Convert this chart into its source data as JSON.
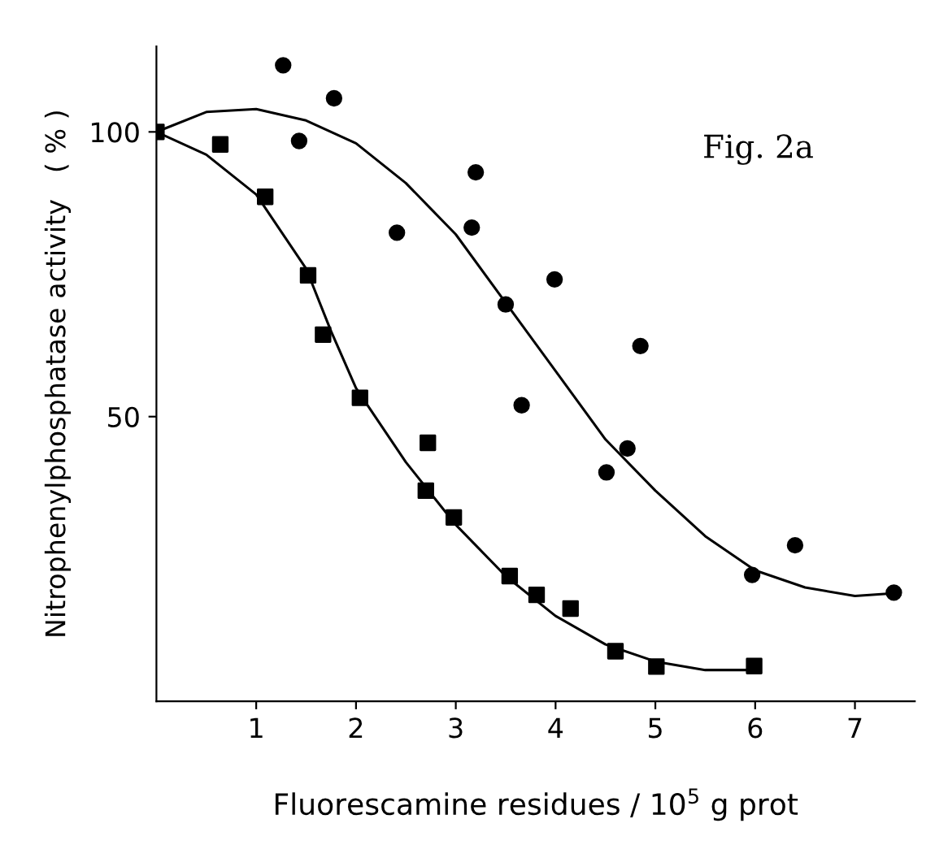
{
  "chart_data": {
    "type": "scatter",
    "xlabel": "Fluorescamine residues / 10$^{5}$ g prot",
    "ylabel": "Nitrophenylphosphatase activity   ( % )",
    "annotations": [
      "Fig. 2a"
    ],
    "xlim": [
      0,
      7.6
    ],
    "ylim": [
      0,
      115
    ],
    "xticks": [
      1,
      2,
      3,
      4,
      5,
      6,
      7
    ],
    "yticks": [
      50,
      100
    ],
    "grid": false,
    "series": [
      {
        "marker": "square",
        "color": "#000000",
        "x": [
          0,
          0.64,
          1.09,
          1.52,
          1.67,
          2.04,
          2.72,
          2.7,
          2.98,
          3.54,
          3.81,
          4.15,
          4.6,
          5.01,
          5.99
        ],
        "values": [
          100,
          97.8,
          88.6,
          74.8,
          64.4,
          53.3,
          45.4,
          37,
          32.3,
          22,
          18.7,
          16.3,
          8.8,
          6.1,
          6.2
        ]
      },
      {
        "marker": "circle",
        "color": "#000000",
        "x": [
          1.27,
          1.78,
          1.43,
          2.41,
          3.2,
          3.16,
          3.5,
          3.66,
          3.99,
          4.85,
          4.72,
          4.51,
          5.97,
          6.4,
          7.39
        ],
        "values": [
          111.7,
          105.9,
          98.4,
          82.3,
          92.9,
          83.2,
          69.7,
          52,
          74.1,
          62.4,
          44.4,
          40.2,
          22.2,
          27.4,
          19.1
        ]
      },
      {
        "type": "line",
        "marker": "none",
        "color": "#000000",
        "x": [
          0,
          0.5,
          1,
          1.5,
          1.75,
          2,
          2.5,
          3,
          3.5,
          4,
          4.5,
          5,
          5.5,
          6
        ],
        "values": [
          100,
          96,
          89,
          76,
          65,
          55,
          42,
          31,
          22,
          15,
          10,
          7,
          5.5,
          5.5
        ]
      },
      {
        "type": "line",
        "marker": "none",
        "color": "#000000",
        "x": [
          0,
          0.5,
          1,
          1.5,
          2,
          2.5,
          3,
          3.5,
          4,
          4.5,
          5,
          5.5,
          6,
          6.5,
          7,
          7.4
        ],
        "values": [
          100,
          103.5,
          104,
          102,
          98,
          91,
          82,
          70,
          58,
          46,
          37,
          29,
          23,
          20,
          18.5,
          19
        ]
      }
    ]
  }
}
